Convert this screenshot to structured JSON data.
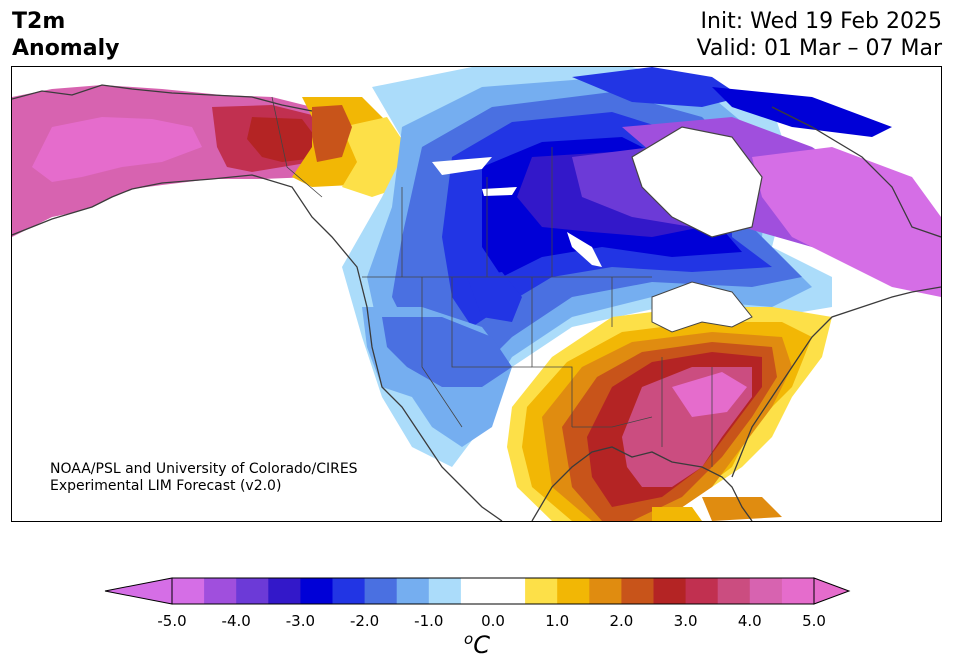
{
  "header": {
    "title_line1": "T2m",
    "title_line2": "Anomaly",
    "init": "Init: Wed 19 Feb 2025",
    "valid": "Valid: 01 Mar – 07 Mar"
  },
  "credit": {
    "line1": "NOAA/PSL and University of Colorado/CIRES",
    "line2": "Experimental LIM Forecast (v2.0)"
  },
  "colorbar": {
    "unit_super": "o",
    "unit_base": "C",
    "ticks": [
      "-5.0",
      "-4.0",
      "-3.0",
      "-2.0",
      "-1.0",
      "0.0",
      "1.0",
      "2.0",
      "3.0",
      "4.0",
      "5.0"
    ],
    "colors": [
      "#d56ee6",
      "#a04fdd",
      "#6c3ad7",
      "#3318c9",
      "#0000d7",
      "#2235e4",
      "#4a70e1",
      "#75aef0",
      "#abdcfa",
      "#ffffff",
      "#ffffff",
      "#fde048",
      "#f2b705",
      "#e08c10",
      "#c8541a",
      "#b42424",
      "#c13050",
      "#cb4d80",
      "#d763b0",
      "#e56ccc"
    ]
  }
}
